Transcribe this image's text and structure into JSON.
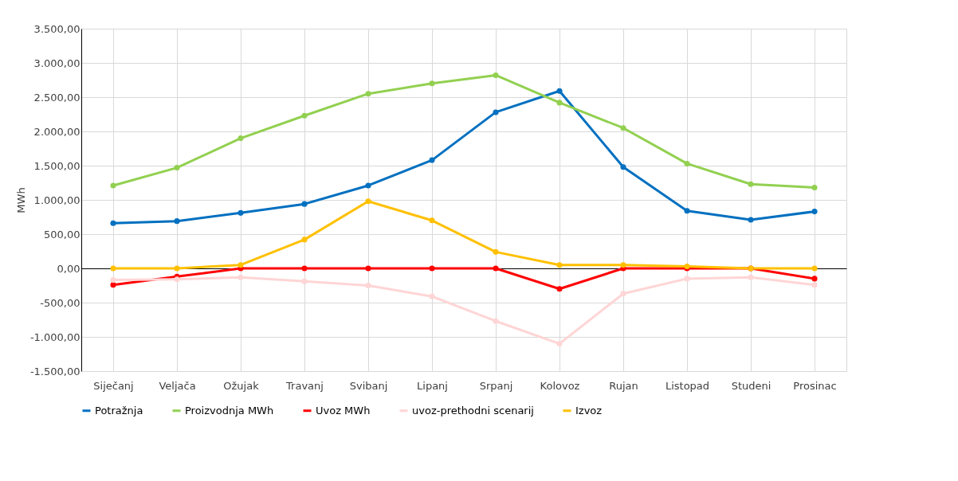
{
  "chart_data": {
    "type": "line",
    "ylabel": "MWh",
    "categories": [
      "Siječanj",
      "Veljača",
      "Ožujak",
      "Travanj",
      "Svibanj",
      "Lipanj",
      "Srpanj",
      "Kolovoz",
      "Rujan",
      "Listopad",
      "Studeni",
      "Prosinac"
    ],
    "series": [
      {
        "name": "Potražnja",
        "color": "#0070c0",
        "values": [
          660,
          690,
          810,
          940,
          1210,
          1580,
          2280,
          2590,
          1480,
          840,
          710,
          830
        ]
      },
      {
        "name": "Proizvodnja MWh",
        "color": "#92d050",
        "values": [
          1210,
          1470,
          1900,
          2230,
          2550,
          2700,
          2820,
          2420,
          2050,
          1530,
          1230,
          1180
        ]
      },
      {
        "name": "Uvoz MWh",
        "color": "#ff0000",
        "values": [
          -240,
          -120,
          0,
          0,
          0,
          0,
          0,
          -300,
          0,
          0,
          0,
          -150
        ]
      },
      {
        "name": "uvoz-prethodni scenarij",
        "color": "#ffd5d5",
        "values": [
          -170,
          -160,
          -130,
          -190,
          -250,
          -410,
          -770,
          -1100,
          -370,
          -150,
          -130,
          -240
        ]
      },
      {
        "name": "Izvoz",
        "color": "#ffc000",
        "values": [
          0,
          0,
          50,
          420,
          980,
          700,
          240,
          50,
          50,
          30,
          0,
          0
        ]
      }
    ],
    "ylim": [
      -1500,
      3500
    ],
    "yticks": [
      {
        "value": -1500,
        "label": "-1.500,00"
      },
      {
        "value": -1000,
        "label": "-1.000,00"
      },
      {
        "value": -500,
        "label": "-500,00"
      },
      {
        "value": 0,
        "label": "0,00"
      },
      {
        "value": 500,
        "label": "500,00"
      },
      {
        "value": 1000,
        "label": "1.000,00"
      },
      {
        "value": 1500,
        "label": "1.500,00"
      },
      {
        "value": 2000,
        "label": "2.000,00"
      },
      {
        "value": 2500,
        "label": "2.500,00"
      },
      {
        "value": 3000,
        "label": "3.000,00"
      },
      {
        "value": 3500,
        "label": "3.500,00"
      }
    ],
    "grid": true,
    "legend": "bottom",
    "marker": "circle",
    "line_style": "solid"
  }
}
